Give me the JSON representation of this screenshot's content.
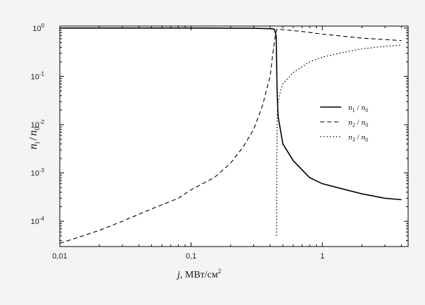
{
  "chart_data": {
    "type": "line",
    "title": "",
    "xlabel": {
      "var": "j",
      "unit": "МВт/см",
      "sup": "2"
    },
    "ylabel": {
      "n_var": "n",
      "n_sub": "i",
      "div": "/",
      "d_var": "n",
      "d_sub": "0"
    },
    "xscale": "log",
    "yscale": "log",
    "xlim": [
      0.01,
      4.5
    ],
    "ylim": [
      3e-05,
      1.1
    ],
    "grid": false,
    "legend_placement": "right",
    "x_ticks": [
      {
        "value": 0.01,
        "label": "0,01"
      },
      {
        "value": 0.1,
        "label": "0,1"
      },
      {
        "value": 1,
        "label": "1"
      }
    ],
    "y_ticks": [
      {
        "value": 1,
        "base": "10",
        "exp": "0"
      },
      {
        "value": 0.1,
        "base": "10",
        "exp": "-1"
      },
      {
        "value": 0.01,
        "base": "10",
        "exp": "-2"
      },
      {
        "value": 0.001,
        "base": "10",
        "exp": "-3"
      },
      {
        "value": 0.0001,
        "base": "10",
        "exp": "-4"
      }
    ],
    "series": [
      {
        "label": {
          "var": "n",
          "sub": "1",
          "div": "/",
          "dvar": "n",
          "dsub": "0"
        },
        "style": "solid",
        "x": [
          0.01,
          0.1,
          0.3,
          0.4,
          0.43,
          0.445,
          0.448,
          0.452,
          0.46,
          0.5,
          0.6,
          0.8,
          1.0,
          1.5,
          2.0,
          3.0,
          4.0
        ],
        "y": [
          1.0,
          1.0,
          0.99,
          0.97,
          0.95,
          0.7,
          0.2,
          0.05,
          0.015,
          0.004,
          0.0018,
          0.0008,
          0.0006,
          0.00045,
          0.00037,
          0.0003,
          0.00028
        ]
      },
      {
        "label": {
          "var": "n",
          "sub": "2",
          "div": "/",
          "dvar": "n",
          "dsub": "0"
        },
        "style": "dashed",
        "x": [
          0.01,
          0.015,
          0.02,
          0.03,
          0.05,
          0.08,
          0.1,
          0.15,
          0.2,
          0.25,
          0.3,
          0.35,
          0.4,
          0.42,
          0.44,
          0.45,
          0.5,
          0.7,
          1.0,
          1.5,
          2.0,
          3.0,
          4.0
        ],
        "y": [
          3.5e-05,
          5e-05,
          6.5e-05,
          0.0001,
          0.00018,
          0.0003,
          0.00045,
          0.0008,
          0.0016,
          0.0035,
          0.008,
          0.025,
          0.1,
          0.3,
          0.75,
          0.95,
          0.93,
          0.85,
          0.75,
          0.67,
          0.62,
          0.58,
          0.55
        ]
      },
      {
        "label": {
          "var": "n",
          "sub": "3",
          "div": "/",
          "dvar": "n",
          "dsub": "0"
        },
        "style": "dotted",
        "x": [
          0.448,
          0.449,
          0.45,
          0.452,
          0.455,
          0.46,
          0.48,
          0.5,
          0.6,
          0.8,
          1.0,
          1.5,
          2.0,
          3.0,
          4.0
        ],
        "y": [
          5e-05,
          0.0003,
          0.002,
          0.01,
          0.02,
          0.03,
          0.05,
          0.07,
          0.12,
          0.2,
          0.25,
          0.32,
          0.37,
          0.42,
          0.44
        ]
      }
    ]
  }
}
